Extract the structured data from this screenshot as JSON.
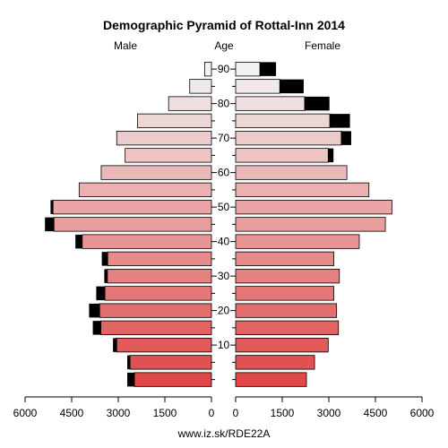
{
  "chart_data": {
    "type": "bar",
    "title": "Demographic Pyramid of Rottal-Inn 2014",
    "left_label": "Male",
    "center_label": "Age",
    "right_label": "Female",
    "source": "www.iz.sk/RDE22A",
    "xlim": [
      0,
      6000
    ],
    "x_ticks": [
      0,
      1500,
      3000,
      4500,
      6000
    ],
    "x_tick_labels": [
      "0",
      "1500",
      "3000",
      "4500",
      "6000"
    ],
    "age_ticks": [
      10,
      20,
      30,
      40,
      50,
      60,
      70,
      80,
      90
    ],
    "age_groups": [
      0,
      5,
      10,
      15,
      20,
      25,
      30,
      35,
      40,
      45,
      50,
      55,
      60,
      65,
      70,
      75,
      80,
      85,
      90
    ],
    "series": [
      {
        "name": "Male",
        "values": [
          2480,
          2620,
          3050,
          3560,
          3600,
          3430,
          3350,
          3340,
          4160,
          5070,
          5100,
          4260,
          3550,
          2780,
          3050,
          2380,
          1380,
          700,
          220
        ],
        "excess": [
          230,
          90,
          120,
          260,
          340,
          280,
          100,
          190,
          220,
          290,
          80,
          0,
          0,
          0,
          0,
          0,
          0,
          0,
          0
        ]
      },
      {
        "name": "Female",
        "values": [
          2280,
          2540,
          2980,
          3310,
          3250,
          3160,
          3340,
          3160,
          3980,
          4820,
          5030,
          4290,
          3580,
          2980,
          3400,
          3030,
          2220,
          1420,
          780
        ],
        "excess": [
          0,
          0,
          0,
          0,
          0,
          0,
          0,
          0,
          0,
          0,
          0,
          0,
          0,
          170,
          320,
          650,
          800,
          770,
          520
        ]
      }
    ],
    "colors": {
      "young": "#e04848",
      "old": "#f2f2f2",
      "excess": "#000000",
      "outline": "#000000"
    }
  }
}
